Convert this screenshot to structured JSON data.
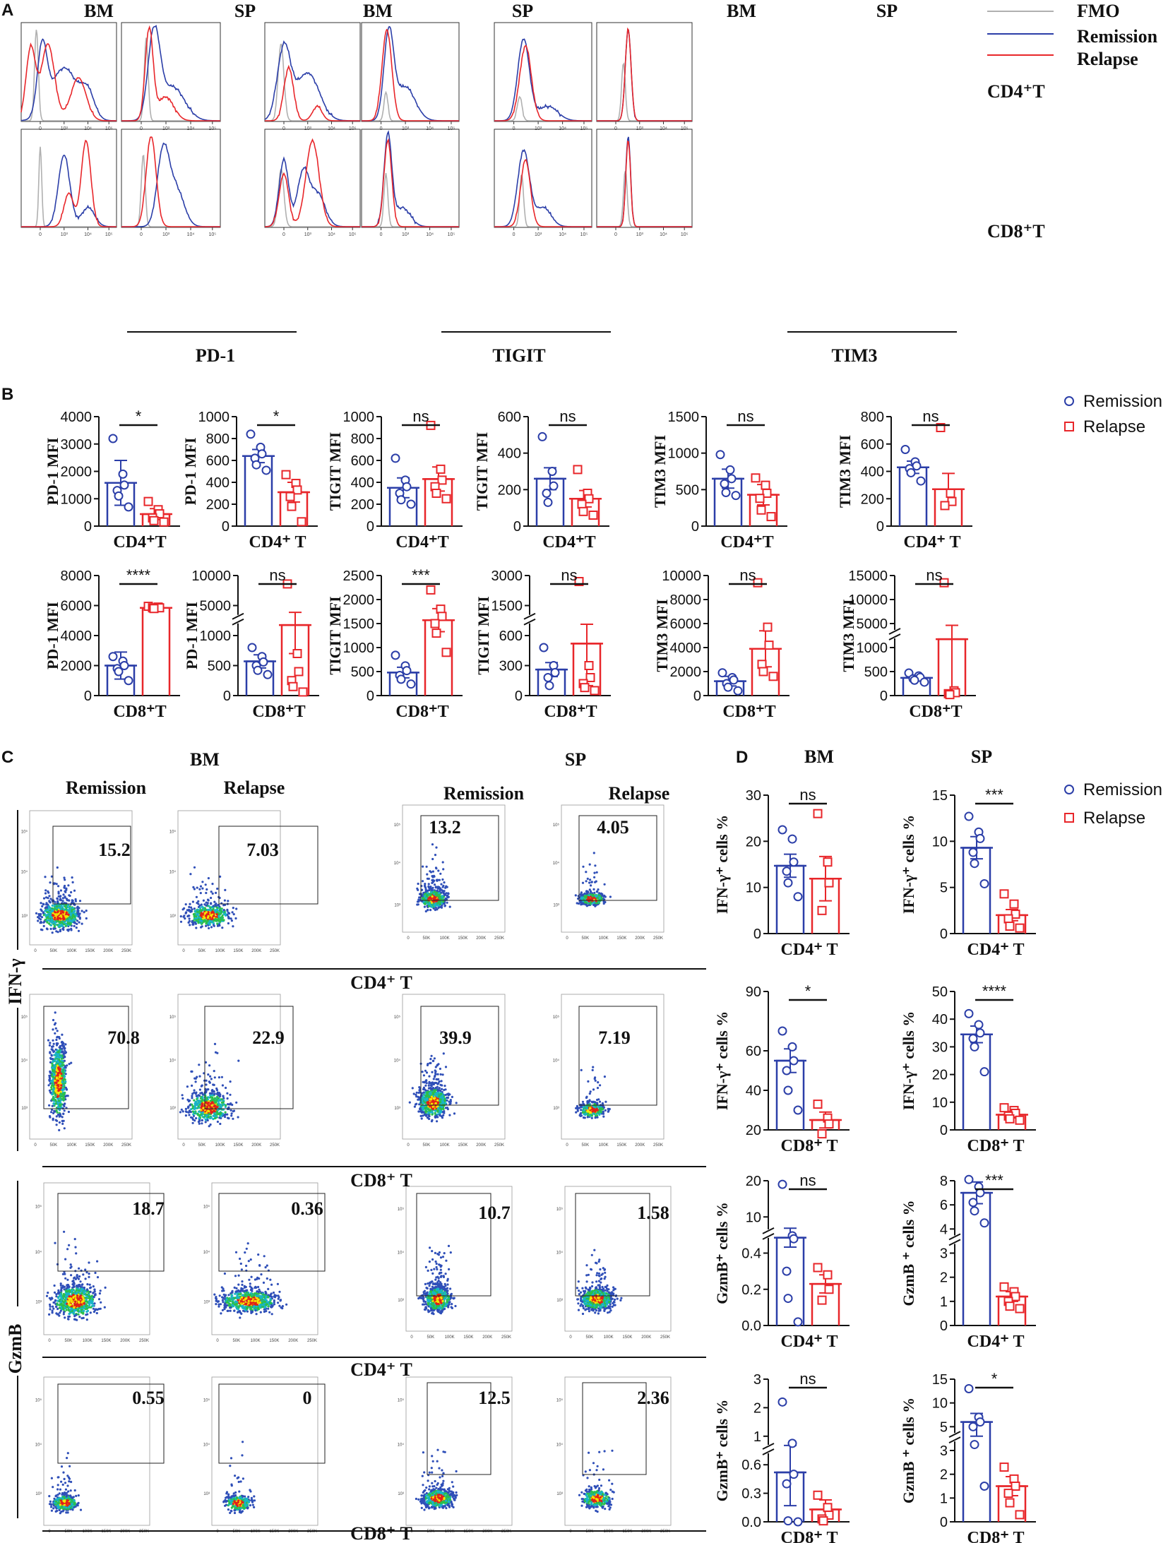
{
  "colors": {
    "fmo": "#b0b0b0",
    "remission": "#2b3ea8",
    "relapse": "#e8262a",
    "dot_hi": "#e0201a",
    "dot_mid": "#2bbf4a",
    "dot_core": "#f5e600",
    "ink": "#111111"
  },
  "panels": {
    "A": "A",
    "B": "B",
    "C": "C",
    "D": "D"
  },
  "tissues": {
    "bm": "BM",
    "sp": "SP"
  },
  "groups": {
    "remission": "Remission",
    "relapse": "Relapse"
  },
  "legend_a": {
    "fmo": "FMO",
    "remission": "Remission",
    "relapse": "Relapse"
  },
  "legend_b": {
    "remission": "Remission",
    "relapse": "Relapse"
  },
  "legend_d": {
    "remission": "Remission",
    "relapse": "Relapse"
  },
  "cell_labels": {
    "cd4": "CD4⁺T",
    "cd8": "CD8⁺T",
    "cd4_sp": "CD4⁺ T",
    "cd8_sp": "CD8⁺ T",
    "cd4_spaced": "CD4⁺  T",
    "cd8_spaced": "CD8⁺  T"
  },
  "markers": {
    "pd1": "PD-1",
    "tigit": "TIGIT",
    "tim3": "TIM3",
    "ifng": "IFN-γ",
    "gzmb": "GzmB"
  },
  "histogram_ticks": [
    "0",
    "10³",
    "10⁴",
    "10⁵"
  ],
  "flow_x_ticks": [
    "0",
    "50K",
    "100K",
    "150K",
    "200K",
    "250K"
  ],
  "flow_y_ticks": [
    "10⁵",
    "10⁴",
    "10³",
    "0",
    "-10³"
  ],
  "gate_percentages": {
    "ifng_cd4": {
      "bm_remission": "15.2",
      "bm_relapse": "7.03",
      "sp_remission": "13.2",
      "sp_relapse": "4.05"
    },
    "ifng_cd8": {
      "bm_remission": "70.8",
      "bm_relapse": "22.9",
      "sp_remission": "39.9",
      "sp_relapse": "7.19"
    },
    "gzmb_cd4": {
      "bm_remission": "18.7",
      "bm_relapse": "0.36",
      "sp_remission": "10.7",
      "sp_relapse": "1.58"
    },
    "gzmb_cd8": {
      "bm_remission": "0.55",
      "bm_relapse": "0",
      "sp_remission": "12.5",
      "sp_relapse": "2.36"
    }
  },
  "chart_data": [
    {
      "type": "bar",
      "panel": "B",
      "title": "",
      "ylabel": "PD-1 MFI",
      "xlabel": "CD4⁺T",
      "categories": [
        "Remission",
        "Relapse"
      ],
      "values": [
        1580,
        440
      ],
      "errors": [
        820,
        200
      ],
      "points": [
        [
          3200,
          1900,
          1500,
          1300,
          1100,
          700
        ],
        [
          900,
          600,
          450,
          300,
          200,
          150
        ]
      ],
      "yticks": [
        "0",
        "1000",
        "2000",
        "3000",
        "4000"
      ],
      "ylim": [
        0,
        4000
      ],
      "sig": "*"
    },
    {
      "type": "bar",
      "panel": "B",
      "title": "",
      "ylabel": "PD-1 MFI",
      "xlabel": "CD4⁺ T",
      "categories": [
        "Remission",
        "Relapse"
      ],
      "values": [
        640,
        310
      ],
      "errors": [
        60,
        90
      ],
      "points": [
        [
          840,
          720,
          660,
          620,
          560,
          510
        ],
        [
          470,
          390,
          330,
          270,
          180,
          40
        ]
      ],
      "yticks": [
        "0",
        "200",
        "400",
        "600",
        "800",
        "1000"
      ],
      "ylim": [
        0,
        1000
      ],
      "sig": "*"
    },
    {
      "type": "bar",
      "panel": "B",
      "title": "",
      "ylabel": "TIGIT MFI",
      "xlabel": "CD4⁺T",
      "categories": [
        "Remission",
        "Relapse"
      ],
      "values": [
        350,
        430
      ],
      "errors": [
        90,
        110
      ],
      "points": [
        [
          620,
          420,
          360,
          300,
          240,
          200
        ],
        [
          920,
          520,
          420,
          360,
          300,
          250
        ]
      ],
      "yticks": [
        "0",
        "200",
        "400",
        "600",
        "800",
        "1000"
      ],
      "ylim": [
        0,
        1000
      ],
      "sig": "ns"
    },
    {
      "type": "bar",
      "panel": "B",
      "title": "",
      "ylabel": "TIGIT MFI",
      "xlabel": "CD4⁺T",
      "categories": [
        "Remission",
        "Relapse"
      ],
      "values": [
        260,
        150
      ],
      "errors": [
        60,
        45
      ],
      "points": [
        [
          490,
          300,
          220,
          180,
          130
        ],
        [
          310,
          180,
          150,
          120,
          80,
          60
        ]
      ],
      "yticks": [
        "0",
        "200",
        "400",
        "600"
      ],
      "ylim": [
        0,
        600
      ],
      "sig": "ns"
    },
    {
      "type": "bar",
      "panel": "B",
      "title": "",
      "ylabel": "TIM3 MFI",
      "xlabel": "CD4⁺T",
      "categories": [
        "Remission",
        "Relapse"
      ],
      "values": [
        650,
        430
      ],
      "errors": [
        130,
        140
      ],
      "points": [
        [
          980,
          770,
          650,
          580,
          460,
          420
        ],
        [
          660,
          560,
          450,
          380,
          220,
          130
        ]
      ],
      "yticks": [
        "0",
        "500",
        "1000",
        "1500"
      ],
      "ylim": [
        0,
        1500
      ],
      "sig": "ns"
    },
    {
      "type": "bar",
      "panel": "B",
      "title": "",
      "ylabel": "TIM3 MFI",
      "xlabel": "CD4⁺ T",
      "categories": [
        "Remission",
        "Relapse"
      ],
      "values": [
        430,
        270
      ],
      "errors": [
        45,
        115
      ],
      "points": [
        [
          560,
          470,
          440,
          420,
          390,
          330
        ],
        [
          720,
          240,
          180,
          150
        ]
      ],
      "yticks": [
        "0",
        "200",
        "400",
        "600",
        "800"
      ],
      "ylim": [
        0,
        800
      ],
      "sig": "ns"
    },
    {
      "type": "bar",
      "panel": "B",
      "title": "",
      "ylabel": "PD-1 MFI",
      "xlabel": "CD8⁺T",
      "categories": [
        "Remission",
        "Relapse"
      ],
      "values": [
        2000,
        5850
      ],
      "errors": [
        900,
        70
      ],
      "points": [
        [
          2600,
          2300,
          2000,
          1800,
          1600,
          1000
        ],
        [
          5950,
          5900,
          5850,
          5850,
          5800
        ]
      ],
      "yticks": [
        "0",
        "2000",
        "4000",
        "6000",
        "8000"
      ],
      "ylim": [
        0,
        8000
      ],
      "sig": "****"
    },
    {
      "type": "bar",
      "panel": "B",
      "title": "",
      "ylabel": "PD-1 MFI",
      "xlabel": "CD8⁺T",
      "categories": [
        "Remission",
        "Relapse"
      ],
      "values": [
        570,
        2400
      ],
      "errors": [
        110,
        1700
      ],
      "points": [
        [
          800,
          650,
          560,
          500,
          420,
          350
        ],
        [
          8600,
          700,
          400,
          250,
          150,
          60
        ]
      ],
      "yticks": [
        "0",
        "500",
        "1000",
        "5000",
        "10000"
      ],
      "ylim": [
        0,
        10000
      ],
      "break": [
        1000,
        2000
      ],
      "sig": "ns"
    },
    {
      "type": "bar",
      "panel": "B",
      "title": "",
      "ylabel": "TIGIT MFI",
      "xlabel": "CD8⁺T",
      "categories": [
        "Remission",
        "Relapse"
      ],
      "values": [
        480,
        1570
      ],
      "errors": [
        110,
        240
      ],
      "points": [
        [
          840,
          620,
          520,
          420,
          340,
          240
        ],
        [
          2200,
          1800,
          1650,
          1500,
          1300,
          900
        ]
      ],
      "yticks": [
        "0",
        "500",
        "1000",
        "1500",
        "2000",
        "2500"
      ],
      "ylim": [
        0,
        2500
      ],
      "sig": "***"
    },
    {
      "type": "bar",
      "panel": "B",
      "title": "",
      "ylabel": "TIGIT MFI",
      "xlabel": "CD8⁺T",
      "categories": [
        "Remission",
        "Relapse"
      ],
      "values": [
        260,
        520
      ],
      "errors": [
        70,
        420
      ],
      "points": [
        [
          480,
          300,
          230,
          180,
          100
        ],
        [
          2700,
          300,
          180,
          120,
          80,
          50
        ]
      ],
      "yticks": [
        "0",
        "300",
        "600",
        "1500",
        "3000"
      ],
      "ylim": [
        0,
        3000
      ],
      "break": [
        600,
        800
      ],
      "sig": "ns"
    },
    {
      "type": "bar",
      "panel": "B",
      "title": "",
      "ylabel": "TIM3 MFI",
      "xlabel": "CD8⁺T",
      "categories": [
        "Remission",
        "Relapse"
      ],
      "values": [
        1200,
        3900
      ],
      "errors": [
        400,
        1500
      ],
      "points": [
        [
          1900,
          1500,
          1300,
          1000,
          700,
          400
        ],
        [
          9400,
          5700,
          4200,
          2600,
          2000,
          1600
        ]
      ],
      "yticks": [
        "0",
        "2000",
        "4000",
        "6000",
        "8000",
        "10000"
      ],
      "ylim": [
        0,
        10000
      ],
      "sig": "ns"
    },
    {
      "type": "bar",
      "panel": "B",
      "title": "",
      "ylabel": "TIM3 MFI",
      "xlabel": "CD8⁺T",
      "categories": [
        "Remission",
        "Relapse"
      ],
      "values": [
        370,
        2400
      ],
      "errors": [
        40,
        2300
      ],
      "points": [
        [
          470,
          410,
          380,
          350,
          320,
          280
        ],
        [
          13500,
          100,
          60,
          40,
          20
        ]
      ],
      "yticks": [
        "0",
        "500",
        "1000",
        "5000",
        "10000",
        "15000"
      ],
      "ylim": [
        0,
        15000
      ],
      "break": [
        1000,
        2000
      ],
      "sig": "ns"
    },
    {
      "type": "bar",
      "panel": "D",
      "title": "BM",
      "ylabel": "IFN-γ⁺ cells %",
      "xlabel": "CD4⁺ T",
      "categories": [
        "Remission",
        "Relapse"
      ],
      "values": [
        14.7,
        11.9
      ],
      "errors": [
        2.5,
        4.8
      ],
      "points": [
        [
          22.5,
          20.5,
          15.5,
          13.5,
          11,
          8
        ],
        [
          26,
          15.5,
          11,
          5
        ]
      ],
      "yticks": [
        "0",
        "10",
        "20",
        "30"
      ],
      "ylim": [
        0,
        30
      ],
      "sig": "ns"
    },
    {
      "type": "bar",
      "panel": "D",
      "title": "SP",
      "ylabel": "IFN-γ⁺ cells %",
      "xlabel": "CD4⁺ T",
      "categories": [
        "Remission",
        "Relapse"
      ],
      "values": [
        9.3,
        2.0
      ],
      "errors": [
        1.2,
        0.6
      ],
      "points": [
        [
          12.7,
          11,
          10.3,
          8.8,
          7.6,
          5.4
        ],
        [
          4.3,
          3.2,
          2.1,
          1.6,
          0.8,
          0.6
        ]
      ],
      "yticks": [
        "0",
        "5",
        "10",
        "15"
      ],
      "ylim": [
        0,
        15
      ],
      "sig": "***"
    },
    {
      "type": "bar",
      "panel": "D",
      "title": "",
      "ylabel": "IFN-γ⁺ cells %",
      "xlabel": "CD8⁺ T",
      "categories": [
        "Remission",
        "Relapse"
      ],
      "values": [
        55,
        25
      ],
      "errors": [
        6,
        4
      ],
      "points": [
        [
          70,
          62,
          55,
          50,
          40,
          30
        ],
        [
          33,
          26,
          23,
          18
        ]
      ],
      "yticks": [
        "20",
        "40",
        "60",
        "90"
      ],
      "ylim": [
        20,
        90
      ],
      "sig": "*"
    },
    {
      "type": "bar",
      "panel": "D",
      "title": "",
      "ylabel": "IFN-γ⁺ cells %",
      "xlabel": "CD8⁺ T",
      "categories": [
        "Remission",
        "Relapse"
      ],
      "values": [
        34.5,
        5.5
      ],
      "errors": [
        3,
        1.2
      ],
      "points": [
        [
          42,
          38,
          35,
          33,
          30,
          21
        ],
        [
          8,
          7,
          6,
          5,
          4,
          3.5
        ]
      ],
      "yticks": [
        "0",
        "10",
        "20",
        "30",
        "40",
        "50"
      ],
      "ylim": [
        0,
        50
      ],
      "sig": "****"
    },
    {
      "type": "bar",
      "panel": "D",
      "title": "",
      "ylabel": "GzmB⁺ cells %",
      "xlabel": "CD4⁺  T",
      "categories": [
        "Remission",
        "Relapse"
      ],
      "values": [
        4.5,
        0.23
      ],
      "errors": [
        2.5,
        0.05
      ],
      "points": [
        [
          19,
          5,
          4.2,
          0.3,
          0.15,
          0.02
        ],
        [
          0.32,
          0.28,
          0.2,
          0.14
        ]
      ],
      "yticks": [
        "0.0",
        "0.2",
        "0.4",
        "10",
        "20"
      ],
      "ylim": [
        0,
        20
      ],
      "break": [
        0.45,
        1
      ],
      "sig": "ns"
    },
    {
      "type": "bar",
      "panel": "D",
      "title": "",
      "ylabel": "GzmB ⁺ cells %",
      "xlabel": "CD4⁺  T",
      "categories": [
        "Remission",
        "Relapse"
      ],
      "values": [
        7,
        1.2
      ],
      "errors": [
        0.9,
        0.2
      ],
      "points": [
        [
          8.5,
          7.5,
          7,
          6.2,
          5.5,
          4.5
        ],
        [
          1.6,
          1.4,
          1.2,
          1.0,
          0.8,
          0.7
        ]
      ],
      "yticks": [
        "0",
        "1",
        "2",
        "3",
        "4",
        "6",
        "8"
      ],
      "ylim": [
        0,
        8
      ],
      "break": [
        3,
        3.5
      ],
      "sig": "***"
    },
    {
      "type": "bar",
      "panel": "D",
      "title": "",
      "ylabel": "GzmB⁺ cells %",
      "xlabel": "CD8⁺  T",
      "categories": [
        "Remission",
        "Relapse"
      ],
      "values": [
        0.52,
        0.13
      ],
      "errors": [
        0.35,
        0.1
      ],
      "points": [
        [
          2.2,
          0.9,
          0.5,
          0.4,
          0.01,
          0.0
        ],
        [
          0.28,
          0.15,
          0.07,
          0.03,
          0.01
        ]
      ],
      "yticks": [
        "0.0",
        "0.3",
        "0.6",
        "1",
        "2",
        "3"
      ],
      "ylim": [
        0,
        3
      ],
      "break": [
        0.6,
        0.8
      ],
      "sig": "ns"
    },
    {
      "type": "bar",
      "panel": "D",
      "title": "",
      "ylabel": "GzmB ⁺ cells %",
      "xlabel": "CD8⁺  T",
      "categories": [
        "Remission",
        "Relapse"
      ],
      "values": [
        6,
        1.5
      ],
      "errors": [
        1.8,
        0.4
      ],
      "points": [
        [
          13,
          7,
          6,
          5,
          3.5,
          1.5
        ],
        [
          2.3,
          1.8,
          1.5,
          1.2,
          0.8,
          0.3
        ]
      ],
      "yticks": [
        "0",
        "1",
        "2",
        "3",
        "5",
        "10",
        "15"
      ],
      "ylim": [
        0,
        15
      ],
      "break": [
        3,
        4
      ],
      "sig": "*"
    }
  ]
}
